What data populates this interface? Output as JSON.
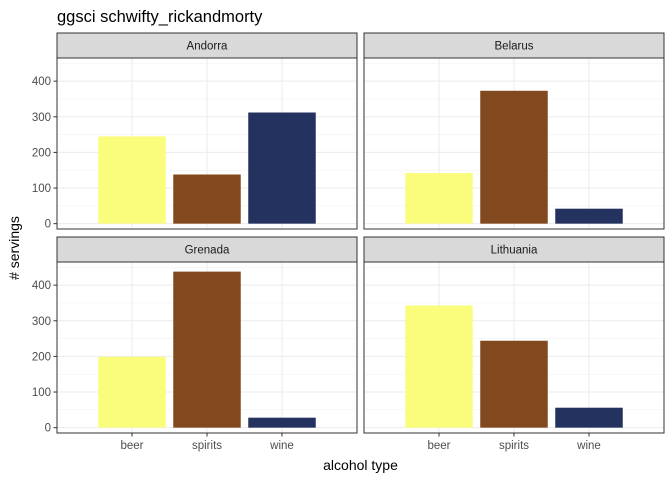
{
  "chart_data": {
    "type": "bar",
    "title": "ggsci schwifty_rickandmorty",
    "xlabel": "alcohol type",
    "ylabel": "# servings",
    "categories": [
      "beer",
      "spirits",
      "wine"
    ],
    "colors": {
      "beer": "#FAFD7C",
      "spirits": "#82491E",
      "wine": "#24325F"
    },
    "ylim": [
      0,
      450
    ],
    "yticks": [
      0,
      100,
      200,
      300,
      400
    ],
    "grid": true,
    "facets": [
      {
        "name": "Andorra",
        "values": [
          245,
          138,
          312
        ]
      },
      {
        "name": "Belarus",
        "values": [
          142,
          373,
          42
        ]
      },
      {
        "name": "Grenada",
        "values": [
          199,
          438,
          28
        ]
      },
      {
        "name": "Lithuania",
        "values": [
          343,
          244,
          56
        ]
      }
    ]
  }
}
